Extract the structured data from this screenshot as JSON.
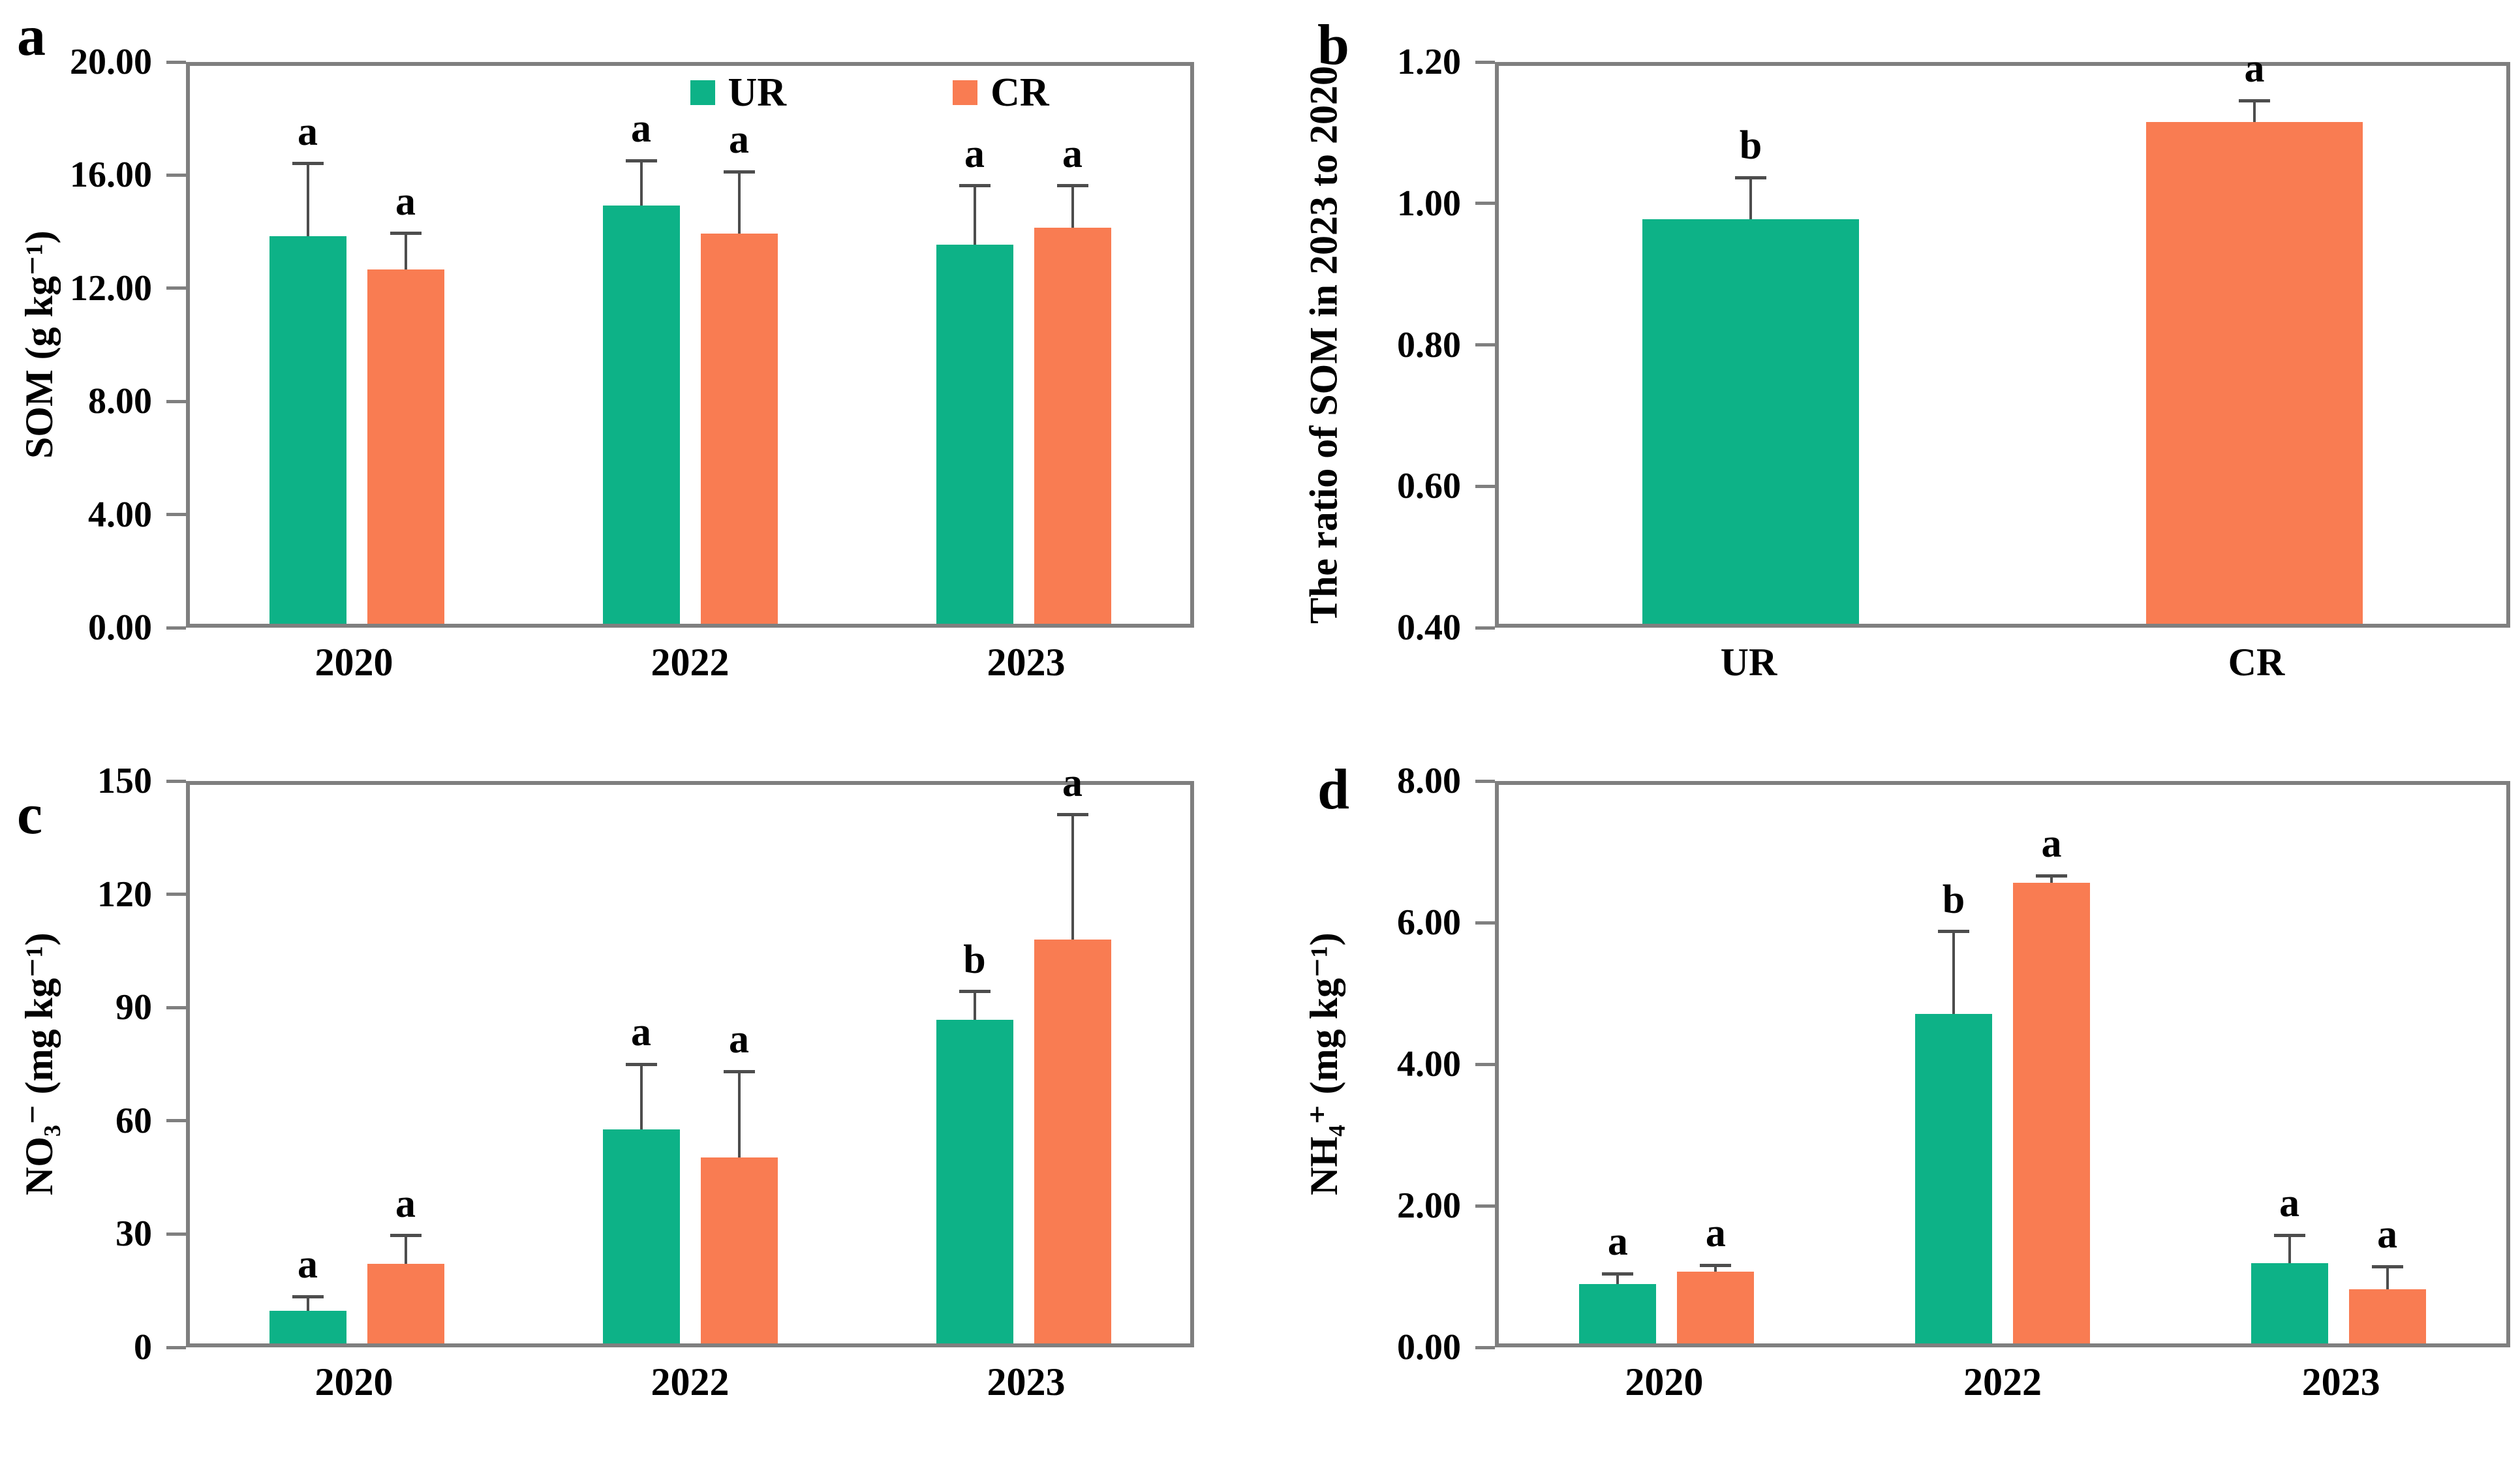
{
  "colors": {
    "ur": "#0db287",
    "cr": "#f97c52",
    "axis": "#7f7f7f",
    "error": "#4d4d4d",
    "text": "#000000",
    "background": "#ffffff"
  },
  "legend": {
    "items": [
      {
        "label": "UR",
        "color": "ur"
      },
      {
        "label": "CR",
        "color": "cr"
      }
    ]
  },
  "chart_data": [
    {
      "panel": "a",
      "type": "bar",
      "ylabel": "SOM (g kg⁻¹)",
      "ylim": [
        0,
        20
      ],
      "yticks": [
        {
          "value": 0,
          "label": "0.00"
        },
        {
          "value": 4,
          "label": "4.00"
        },
        {
          "value": 8,
          "label": "8.00"
        },
        {
          "value": 12,
          "label": "12.00"
        },
        {
          "value": 16,
          "label": "16.00"
        },
        {
          "value": 20,
          "label": "20.00"
        }
      ],
      "show_legend": true,
      "groups": [
        {
          "category": "2020",
          "bars": [
            {
              "series": "UR",
              "color": "ur",
              "value": 13.9,
              "err_top": 16.5,
              "letter": "a"
            },
            {
              "series": "CR",
              "color": "cr",
              "value": 12.7,
              "err_top": 14.0,
              "letter": "a"
            }
          ]
        },
        {
          "category": "2022",
          "bars": [
            {
              "series": "UR",
              "color": "ur",
              "value": 15.0,
              "err_top": 16.6,
              "letter": "a"
            },
            {
              "series": "CR",
              "color": "cr",
              "value": 14.0,
              "err_top": 16.2,
              "letter": "a"
            }
          ]
        },
        {
          "category": "2023",
          "bars": [
            {
              "series": "UR",
              "color": "ur",
              "value": 13.6,
              "err_top": 15.7,
              "letter": "a"
            },
            {
              "series": "CR",
              "color": "cr",
              "value": 14.2,
              "err_top": 15.7,
              "letter": "a"
            }
          ]
        }
      ]
    },
    {
      "panel": "b",
      "type": "bar",
      "ylabel": "The ratio of SOM in 2023 to 2020",
      "ylim": [
        0.4,
        1.2
      ],
      "yticks": [
        {
          "value": 0.4,
          "label": "0.40"
        },
        {
          "value": 0.6,
          "label": "0.60"
        },
        {
          "value": 0.8,
          "label": "0.80"
        },
        {
          "value": 1.0,
          "label": "1.00"
        },
        {
          "value": 1.2,
          "label": "1.20"
        }
      ],
      "show_legend": false,
      "groups": [
        {
          "category": "UR",
          "bars": [
            {
              "series": "UR",
              "color": "ur",
              "value": 0.98,
              "err_top": 1.04,
              "letter": "b"
            }
          ]
        },
        {
          "category": "CR",
          "bars": [
            {
              "series": "CR",
              "color": "cr",
              "value": 1.12,
              "err_top": 1.15,
              "letter": "a"
            }
          ]
        }
      ]
    },
    {
      "panel": "c",
      "type": "bar",
      "ylabel": "NO₃⁻ (mg kg⁻¹)",
      "ylim": [
        0,
        150
      ],
      "yticks": [
        {
          "value": 0,
          "label": "0"
        },
        {
          "value": 30,
          "label": "30"
        },
        {
          "value": 60,
          "label": "60"
        },
        {
          "value": 90,
          "label": "90"
        },
        {
          "value": 120,
          "label": "120"
        },
        {
          "value": 150,
          "label": "150"
        }
      ],
      "show_legend": false,
      "groups": [
        {
          "category": "2020",
          "bars": [
            {
              "series": "UR",
              "color": "ur",
              "value": 8.7,
              "err_top": 12.6,
              "letter": "a"
            },
            {
              "series": "CR",
              "color": "cr",
              "value": 21.3,
              "err_top": 29.0,
              "letter": "a"
            }
          ]
        },
        {
          "category": "2022",
          "bars": [
            {
              "series": "UR",
              "color": "ur",
              "value": 57.5,
              "err_top": 75.0,
              "letter": "a"
            },
            {
              "series": "CR",
              "color": "cr",
              "value": 50.0,
              "err_top": 73.0,
              "letter": "a"
            }
          ]
        },
        {
          "category": "2023",
          "bars": [
            {
              "series": "UR",
              "color": "ur",
              "value": 87.0,
              "err_top": 94.5,
              "letter": "b"
            },
            {
              "series": "CR",
              "color": "cr",
              "value": 108.5,
              "err_top": 142.0,
              "letter": "a"
            }
          ]
        }
      ]
    },
    {
      "panel": "d",
      "type": "bar",
      "ylabel": "NH₄⁺ (mg kg⁻¹)",
      "ylim": [
        0,
        8
      ],
      "yticks": [
        {
          "value": 0,
          "label": "0.00"
        },
        {
          "value": 2,
          "label": "2.00"
        },
        {
          "value": 4,
          "label": "4.00"
        },
        {
          "value": 6,
          "label": "6.00"
        },
        {
          "value": 8,
          "label": "8.00"
        }
      ],
      "show_legend": false,
      "groups": [
        {
          "category": "2020",
          "bars": [
            {
              "series": "UR",
              "color": "ur",
              "value": 0.85,
              "err_top": 1.0,
              "letter": "a"
            },
            {
              "series": "CR",
              "color": "cr",
              "value": 1.03,
              "err_top": 1.12,
              "letter": "a"
            }
          ]
        },
        {
          "category": "2022",
          "bars": [
            {
              "series": "UR",
              "color": "ur",
              "value": 4.72,
              "err_top": 5.9,
              "letter": "b"
            },
            {
              "series": "CR",
              "color": "cr",
              "value": 6.6,
              "err_top": 6.7,
              "letter": "a"
            }
          ]
        },
        {
          "category": "2023",
          "bars": [
            {
              "series": "UR",
              "color": "ur",
              "value": 1.15,
              "err_top": 1.55,
              "letter": "a"
            },
            {
              "series": "CR",
              "color": "cr",
              "value": 0.78,
              "err_top": 1.1,
              "letter": "a"
            }
          ]
        }
      ]
    }
  ]
}
